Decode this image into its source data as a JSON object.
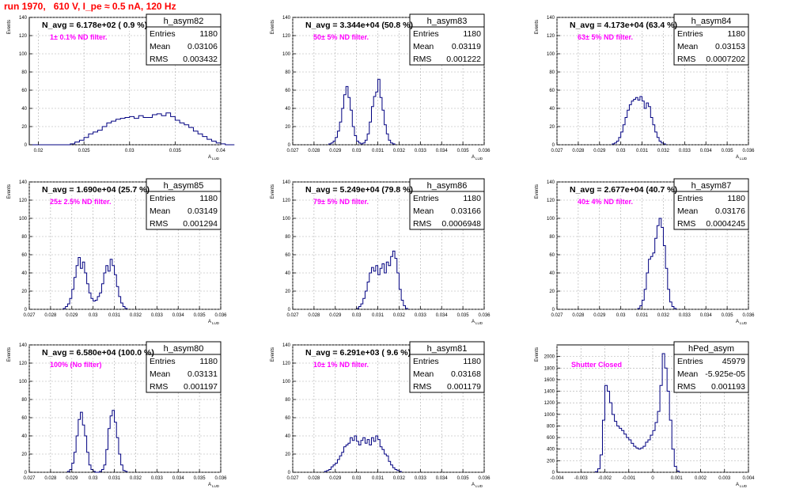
{
  "page_title": "run 1970,   610 V, I_pe ≈ 0.5 nA, 120 Hz",
  "y_axis_label": "Events",
  "x_axis_label_main": "A",
  "x_axis_label_sub": "LUD",
  "stats_labels": [
    "Entries",
    "Mean",
    "RMS"
  ],
  "colors": {
    "title": "#ff0000",
    "histogram": "#000080",
    "annotation": "#ff00ff",
    "grid": "#aaaaaa",
    "axis": "#000000"
  },
  "chart_data": [
    {
      "type": "histogram",
      "name": "h_asym82",
      "header": "N_avg = 6.178e+02 ( 0.9 %)",
      "note": "1± 0.1% ND filter.",
      "entries": "1180",
      "mean": "0.03106",
      "rms": "0.003432",
      "xlim": [
        0.019,
        0.04
      ],
      "ylim": [
        0,
        140
      ],
      "xticks": [
        0.02,
        0.025,
        0.03,
        0.035,
        0.04
      ],
      "xtick_labels": [
        "0.02",
        "0.025",
        "0.03",
        "0.035",
        "0.04"
      ],
      "yticks": [
        0,
        20,
        40,
        60,
        80,
        100,
        120,
        140
      ],
      "bins": {
        "start": 0.019,
        "width": 0.0005,
        "counts": [
          0,
          0,
          0,
          0,
          0,
          0,
          0,
          0,
          0,
          1,
          3,
          5,
          8,
          12,
          14,
          16,
          20,
          24,
          26,
          28,
          29,
          30,
          31,
          29,
          32,
          30,
          30,
          33,
          34,
          32,
          35,
          31,
          27,
          24,
          22,
          19,
          15,
          12,
          9,
          6,
          4,
          2,
          1,
          0,
          0
        ]
      }
    },
    {
      "type": "histogram",
      "name": "h_asym83",
      "header": "N_avg = 3.344e+04 (50.8 %)",
      "note": "50± 5% ND filter.",
      "entries": "1180",
      "mean": "0.03119",
      "rms": "0.001222",
      "xlim": [
        0.027,
        0.036
      ],
      "ylim": [
        0,
        140
      ],
      "xticks": [
        0.027,
        0.028,
        0.029,
        0.03,
        0.031,
        0.032,
        0.033,
        0.034,
        0.035,
        0.036
      ],
      "xtick_labels": [
        "0.027",
        "0.028",
        "0.029",
        "0.03",
        "0.031",
        "0.032",
        "0.033",
        "0.034",
        "0.035",
        "0.036"
      ],
      "yticks": [
        0,
        20,
        40,
        60,
        80,
        100,
        120,
        140
      ],
      "bins": {
        "start": 0.0287,
        "width": 0.0001,
        "counts": [
          1,
          2,
          4,
          8,
          15,
          25,
          40,
          55,
          64,
          52,
          38,
          20,
          10,
          4,
          2,
          1,
          2,
          5,
          12,
          25,
          42,
          53,
          58,
          72,
          52,
          38,
          22,
          12,
          5,
          2,
          1
        ]
      }
    },
    {
      "type": "histogram",
      "name": "h_asym84",
      "header": "N_avg = 4.173e+04 (63.4 %)",
      "note": "63± 5% ND filter.",
      "entries": "1180",
      "mean": "0.03153",
      "rms": "0.0007202",
      "xlim": [
        0.027,
        0.036
      ],
      "ylim": [
        0,
        140
      ],
      "xticks": [
        0.027,
        0.028,
        0.029,
        0.03,
        0.031,
        0.032,
        0.033,
        0.034,
        0.035,
        0.036
      ],
      "xtick_labels": [
        "0.027",
        "0.028",
        "0.029",
        "0.03",
        "0.031",
        "0.032",
        "0.033",
        "0.034",
        "0.035",
        "0.036"
      ],
      "yticks": [
        0,
        20,
        40,
        60,
        80,
        100,
        120,
        140
      ],
      "bins": {
        "start": 0.0296,
        "width": 0.0001,
        "counts": [
          1,
          2,
          4,
          8,
          14,
          22,
          30,
          38,
          44,
          48,
          50,
          52,
          49,
          53,
          48,
          40,
          46,
          42,
          30,
          22,
          14,
          8,
          4,
          2,
          1
        ]
      }
    },
    {
      "type": "histogram",
      "name": "h_asym85",
      "header": "N_avg = 1.690e+04 (25.7 %)",
      "note": "25± 2.5% ND filter.",
      "entries": "1180",
      "mean": "0.03149",
      "rms": "0.001294",
      "xlim": [
        0.027,
        0.036
      ],
      "ylim": [
        0,
        140
      ],
      "xticks": [
        0.027,
        0.028,
        0.029,
        0.03,
        0.031,
        0.032,
        0.033,
        0.034,
        0.035,
        0.036
      ],
      "xtick_labels": [
        "0.027",
        "0.028",
        "0.029",
        "0.03",
        "0.031",
        "0.032",
        "0.033",
        "0.034",
        "0.035",
        "0.036"
      ],
      "yticks": [
        0,
        20,
        40,
        60,
        80,
        100,
        120,
        140
      ],
      "bins": {
        "start": 0.0286,
        "width": 0.0001,
        "counts": [
          1,
          3,
          6,
          12,
          22,
          35,
          48,
          57,
          45,
          52,
          40,
          28,
          18,
          12,
          9,
          10,
          14,
          18,
          28,
          40,
          48,
          42,
          55,
          48,
          38,
          25,
          14,
          7,
          3,
          1
        ]
      }
    },
    {
      "type": "histogram",
      "name": "h_asym86",
      "header": "N_avg = 5.249e+04 (79.8 %)",
      "note": "79± 5% ND filter.",
      "entries": "1180",
      "mean": "0.03166",
      "rms": "0.0006948",
      "xlim": [
        0.027,
        0.036
      ],
      "ylim": [
        0,
        140
      ],
      "xticks": [
        0.027,
        0.028,
        0.029,
        0.03,
        0.031,
        0.032,
        0.033,
        0.034,
        0.035,
        0.036
      ],
      "xtick_labels": [
        "0.027",
        "0.028",
        "0.029",
        "0.03",
        "0.031",
        "0.032",
        "0.033",
        "0.034",
        "0.035",
        "0.036"
      ],
      "yticks": [
        0,
        20,
        40,
        60,
        80,
        100,
        120,
        140
      ],
      "bins": {
        "start": 0.03,
        "width": 0.0001,
        "counts": [
          1,
          3,
          6,
          12,
          20,
          30,
          40,
          46,
          42,
          48,
          38,
          45,
          50,
          40,
          52,
          48,
          58,
          64,
          56,
          40,
          22,
          10,
          4,
          1
        ]
      }
    },
    {
      "type": "histogram",
      "name": "h_asym87",
      "header": "N_avg = 2.677e+04 (40.7 %)",
      "note": "40± 4% ND filter.",
      "entries": "1180",
      "mean": "0.03176",
      "rms": "0.0004245",
      "xlim": [
        0.027,
        0.036
      ],
      "ylim": [
        0,
        140
      ],
      "xticks": [
        0.027,
        0.028,
        0.029,
        0.03,
        0.031,
        0.032,
        0.033,
        0.034,
        0.035,
        0.036
      ],
      "xtick_labels": [
        "0.027",
        "0.028",
        "0.029",
        "0.03",
        "0.031",
        "0.032",
        "0.033",
        "0.034",
        "0.035",
        "0.036"
      ],
      "yticks": [
        0,
        20,
        40,
        60,
        80,
        100,
        120,
        140
      ],
      "bins": {
        "start": 0.0308,
        "width": 0.0001,
        "counts": [
          1,
          4,
          10,
          22,
          40,
          55,
          58,
          62,
          78,
          92,
          100,
          90,
          70,
          45,
          22,
          8,
          3,
          1
        ]
      }
    },
    {
      "type": "histogram",
      "name": "h_asym80",
      "header": "N_avg = 6.580e+04 (100.0 %)",
      "note": "100% (No filter)",
      "entries": "1180",
      "mean": "0.03131",
      "rms": "0.001197",
      "xlim": [
        0.027,
        0.036
      ],
      "ylim": [
        0,
        140
      ],
      "xticks": [
        0.027,
        0.028,
        0.029,
        0.03,
        0.031,
        0.032,
        0.033,
        0.034,
        0.035,
        0.036
      ],
      "xtick_labels": [
        "0.027",
        "0.028",
        "0.029",
        "0.03",
        "0.031",
        "0.032",
        "0.033",
        "0.034",
        "0.035",
        "0.036"
      ],
      "yticks": [
        0,
        20,
        40,
        60,
        80,
        100,
        120,
        140
      ],
      "bins": {
        "start": 0.0288,
        "width": 0.0001,
        "counts": [
          1,
          3,
          10,
          22,
          40,
          58,
          66,
          52,
          40,
          22,
          8,
          3,
          1,
          0,
          0,
          1,
          3,
          8,
          25,
          48,
          62,
          68,
          55,
          38,
          20,
          8,
          2,
          1
        ]
      }
    },
    {
      "type": "histogram",
      "name": "h_asym81",
      "header": "N_avg = 6.291e+03 ( 9.6 %)",
      "note": "10± 1% ND filter.",
      "entries": "1180",
      "mean": "0.03168",
      "rms": "0.001179",
      "xlim": [
        0.027,
        0.036
      ],
      "ylim": [
        0,
        140
      ],
      "xticks": [
        0.027,
        0.028,
        0.029,
        0.03,
        0.031,
        0.032,
        0.033,
        0.034,
        0.035,
        0.036
      ],
      "xtick_labels": [
        "0.027",
        "0.028",
        "0.029",
        "0.03",
        "0.031",
        "0.032",
        "0.033",
        "0.034",
        "0.035",
        "0.036"
      ],
      "yticks": [
        0,
        20,
        40,
        60,
        80,
        100,
        120,
        140
      ],
      "bins": {
        "start": 0.0285,
        "width": 0.0001,
        "counts": [
          1,
          2,
          3,
          6,
          8,
          10,
          14,
          18,
          22,
          28,
          30,
          32,
          38,
          35,
          40,
          34,
          30,
          35,
          38,
          32,
          36,
          30,
          38,
          34,
          40,
          36,
          28,
          25,
          20,
          18,
          12,
          8,
          5,
          3,
          2,
          1
        ]
      }
    },
    {
      "type": "histogram",
      "name": "hPed_asym",
      "header": "",
      "note": "Shutter Closed",
      "entries": "45979",
      "mean": "-5.925e-05",
      "rms": "0.001193",
      "xlim": [
        -0.004,
        0.004
      ],
      "ylim": [
        0,
        2200
      ],
      "xticks": [
        -0.004,
        -0.003,
        -0.002,
        -0.001,
        0,
        0.001,
        0.002,
        0.003,
        0.004
      ],
      "xtick_labels": [
        "-0.004",
        "-0.003",
        "-0.002",
        "-0.001",
        "0",
        "0.001",
        "0.002",
        "0.003",
        "0.004"
      ],
      "yticks": [
        0,
        200,
        400,
        600,
        800,
        1000,
        1200,
        1400,
        1600,
        1800,
        2000
      ],
      "bins": {
        "start": -0.0024,
        "width": 0.0001,
        "counts": [
          10,
          60,
          300,
          900,
          1500,
          1400,
          1200,
          1000,
          880,
          800,
          760,
          720,
          660,
          600,
          560,
          500,
          450,
          420,
          400,
          420,
          450,
          520,
          560,
          640,
          720,
          860,
          1050,
          1500,
          2050,
          1800,
          1400,
          900,
          400,
          100,
          20
        ]
      }
    }
  ]
}
